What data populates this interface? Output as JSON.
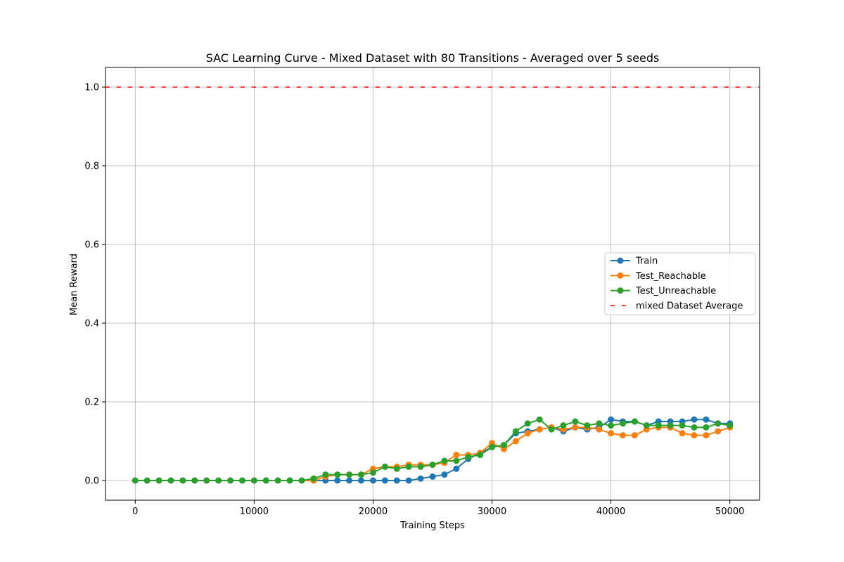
{
  "chart_data": {
    "type": "line",
    "title": "SAC Learning Curve - Mixed Dataset with 80 Transitions - Averaged over 5 seeds",
    "xlabel": "Training Steps",
    "ylabel": "Mean Reward",
    "xlim": [
      -2500,
      52500
    ],
    "ylim": [
      -0.05,
      1.05
    ],
    "xticks": [
      0,
      10000,
      20000,
      30000,
      40000,
      50000
    ],
    "yticks": [
      0.0,
      0.2,
      0.4,
      0.6,
      0.8,
      1.0
    ],
    "xtick_labels": [
      "0",
      "10000",
      "20000",
      "30000",
      "40000",
      "50000"
    ],
    "ytick_labels": [
      "0.0",
      "0.2",
      "0.4",
      "0.6",
      "0.8",
      "1.0"
    ],
    "grid": true,
    "legend_position": "center-right",
    "x": [
      0,
      1000,
      2000,
      3000,
      4000,
      5000,
      6000,
      7000,
      8000,
      9000,
      10000,
      11000,
      12000,
      13000,
      14000,
      15000,
      16000,
      17000,
      18000,
      19000,
      20000,
      21000,
      22000,
      23000,
      24000,
      25000,
      26000,
      27000,
      28000,
      29000,
      30000,
      31000,
      32000,
      33000,
      34000,
      35000,
      36000,
      37000,
      38000,
      39000,
      40000,
      41000,
      42000,
      43000,
      44000,
      45000,
      46000,
      47000,
      48000,
      49000,
      50000
    ],
    "series": [
      {
        "name": "Train",
        "color": "#1f77b4",
        "values": [
          0,
          0,
          0,
          0,
          0,
          0,
          0,
          0,
          0,
          0,
          0,
          0,
          0,
          0,
          0,
          0,
          0,
          0,
          0,
          0,
          0,
          0,
          0,
          0,
          0.005,
          0.01,
          0.015,
          0.03,
          0.055,
          0.07,
          0.085,
          0.09,
          0.12,
          0.125,
          0.13,
          0.135,
          0.125,
          0.135,
          0.13,
          0.135,
          0.155,
          0.15,
          0.15,
          0.14,
          0.15,
          0.15,
          0.15,
          0.155,
          0.155,
          0.145,
          0.145
        ]
      },
      {
        "name": "Test_Reachable",
        "color": "#ff7f0e",
        "values": [
          0,
          0,
          0,
          0,
          0,
          0,
          0,
          0,
          0,
          0,
          0,
          0,
          0,
          0,
          0,
          0,
          0.01,
          0.015,
          0.015,
          0.015,
          0.03,
          0.035,
          0.035,
          0.04,
          0.04,
          0.04,
          0.045,
          0.065,
          0.065,
          0.07,
          0.095,
          0.08,
          0.1,
          0.12,
          0.13,
          0.135,
          0.13,
          0.135,
          0.135,
          0.13,
          0.12,
          0.115,
          0.115,
          0.13,
          0.135,
          0.135,
          0.12,
          0.115,
          0.115,
          0.125,
          0.135
        ]
      },
      {
        "name": "Test_Unreachable",
        "color": "#2ca02c",
        "values": [
          0,
          0,
          0,
          0,
          0,
          0,
          0,
          0,
          0,
          0,
          0,
          0,
          0,
          0,
          0,
          0.005,
          0.015,
          0.015,
          0.015,
          0.015,
          0.02,
          0.035,
          0.03,
          0.035,
          0.035,
          0.04,
          0.05,
          0.05,
          0.06,
          0.065,
          0.085,
          0.09,
          0.125,
          0.145,
          0.155,
          0.13,
          0.14,
          0.15,
          0.14,
          0.145,
          0.14,
          0.145,
          0.15,
          0.14,
          0.14,
          0.14,
          0.14,
          0.135,
          0.135,
          0.145,
          0.14
        ]
      }
    ],
    "reference_line": {
      "name": "mixed Dataset Average",
      "y": 1.0,
      "color": "#ff0000",
      "style": "dashed"
    }
  }
}
